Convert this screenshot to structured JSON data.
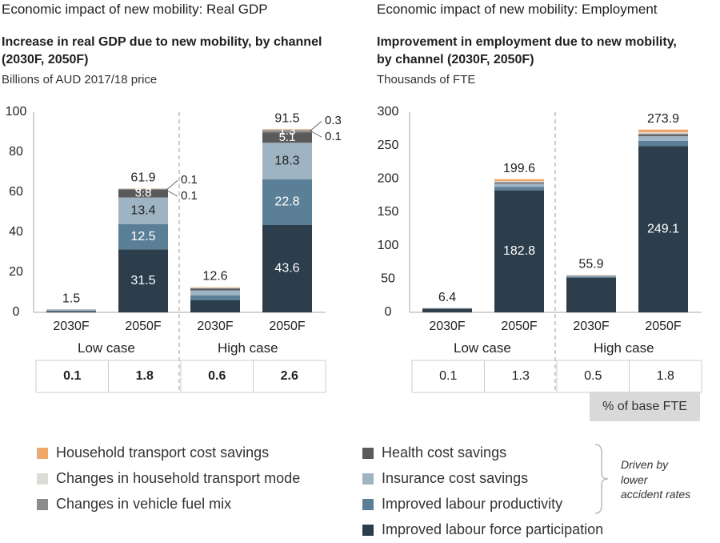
{
  "titles": {
    "left": "Economic impact of new mobility: Real GDP",
    "right": "Economic impact of new mobility: Employment"
  },
  "subtitles": {
    "left_line1": "Increase in real GDP due to new mobility, by channel",
    "left_line2": "(2030F, 2050F)",
    "left_unit": "Billions of AUD 2017/18 price",
    "right_line1": "Improvement in employment due to new mobility,",
    "right_line2": "by channel  (2030F, 2050F)",
    "right_unit": "Thousands of FTE"
  },
  "groups": [
    "Low case",
    "High case"
  ],
  "pct_label": "% of base FTE",
  "driven_by": [
    "Driven by",
    "lower",
    "accident rates"
  ],
  "legend": [
    {
      "label": "Household transport cost savings",
      "color": "#f0a868"
    },
    {
      "label": "Changes in household transport mode",
      "color": "#dcdcd6"
    },
    {
      "label": "Changes in vehicle fuel mix",
      "color": "#8c8c8c"
    },
    {
      "label": "Health cost savings",
      "color": "#5a5a5a"
    },
    {
      "label": "Insurance cost savings",
      "color": "#9fb4c2"
    },
    {
      "label": "Improved labour productivity",
      "color": "#5b7f96"
    },
    {
      "label": "Improved labour force participation",
      "color": "#2c3e4c"
    }
  ],
  "chart_data": [
    {
      "type": "bar",
      "stacked": true,
      "categories": [
        "2030F",
        "2050F",
        "2030F",
        "2050F"
      ],
      "ylim": [
        0,
        100
      ],
      "yticks": [
        0,
        20,
        40,
        60,
        80,
        100
      ],
      "series": [
        {
          "name": "Improved labour force participation",
          "values": [
            0.5,
            31.5,
            6.0,
            43.6
          ]
        },
        {
          "name": "Improved labour productivity",
          "values": [
            0.4,
            12.5,
            2.4,
            22.8
          ]
        },
        {
          "name": "Insurance cost savings",
          "values": [
            0.4,
            13.4,
            2.6,
            18.3
          ]
        },
        {
          "name": "Health cost savings",
          "values": [
            0.1,
            3.8,
            0.8,
            5.1
          ]
        },
        {
          "name": "Changes in vehicle fuel mix",
          "values": [
            0.05,
            0.5,
            0.3,
            1.3
          ]
        },
        {
          "name": "Changes in household transport mode",
          "values": [
            0.03,
            0.1,
            0.3,
            0.1
          ]
        },
        {
          "name": "Household transport cost savings",
          "values": [
            0.02,
            0.1,
            0.2,
            0.3
          ]
        }
      ],
      "totals": [
        "1.5",
        "61.9",
        "12.6",
        "91.5"
      ],
      "segment_labels": [
        {
          "bar": 1,
          "series": 0,
          "text": "31.5"
        },
        {
          "bar": 1,
          "series": 1,
          "text": "12.5"
        },
        {
          "bar": 1,
          "series": 2,
          "text": "13.4"
        },
        {
          "bar": 1,
          "series": 3,
          "text": "3.8"
        },
        {
          "bar": 1,
          "series": 4,
          "text": "0.5"
        },
        {
          "bar": 3,
          "series": 0,
          "text": "43.6"
        },
        {
          "bar": 3,
          "series": 1,
          "text": "22.8"
        },
        {
          "bar": 3,
          "series": 2,
          "text": "18.3"
        },
        {
          "bar": 3,
          "series": 3,
          "text": "5.1"
        },
        {
          "bar": 3,
          "series": 4,
          "text": "1.3"
        }
      ],
      "callouts": [
        {
          "bar": 1,
          "text": "0.1"
        },
        {
          "bar": 1,
          "text": "0.1"
        },
        {
          "bar": 3,
          "text": "0.3"
        },
        {
          "bar": 3,
          "text": "0.1"
        }
      ],
      "table_values": [
        "0.1",
        "1.8",
        "0.6",
        "2.6"
      ]
    },
    {
      "type": "bar",
      "stacked": true,
      "categories": [
        "2030F",
        "2050F",
        "2030F",
        "2050F"
      ],
      "ylim": [
        0,
        300
      ],
      "yticks": [
        0,
        50,
        100,
        150,
        200,
        250,
        300
      ],
      "series": [
        {
          "name": "Improved labour force participation",
          "values": [
            5.4,
            182.8,
            52.0,
            249.1
          ]
        },
        {
          "name": "Improved labour productivity",
          "values": [
            0.4,
            5.0,
            1.5,
            7.8
          ]
        },
        {
          "name": "Insurance cost savings",
          "values": [
            0.3,
            5.0,
            1.2,
            7.0
          ]
        },
        {
          "name": "Health cost savings",
          "values": [
            0.1,
            1.0,
            0.3,
            2.0
          ]
        },
        {
          "name": "Changes in vehicle fuel mix",
          "values": [
            0.1,
            1.5,
            0.3,
            2.0
          ]
        },
        {
          "name": "Changes in household transport mode",
          "values": [
            0.0,
            1.3,
            0.2,
            2.0
          ]
        },
        {
          "name": "Household transport cost savings",
          "values": [
            0.1,
            3.0,
            0.4,
            4.0
          ]
        }
      ],
      "totals": [
        "6.4",
        "199.6",
        "55.9",
        "273.9"
      ],
      "segment_labels": [
        {
          "bar": 1,
          "series": 0,
          "text": "182.8"
        },
        {
          "bar": 3,
          "series": 0,
          "text": "249.1"
        }
      ],
      "table_values": [
        "0.1",
        "1.3",
        "0.5",
        "1.8"
      ]
    }
  ]
}
